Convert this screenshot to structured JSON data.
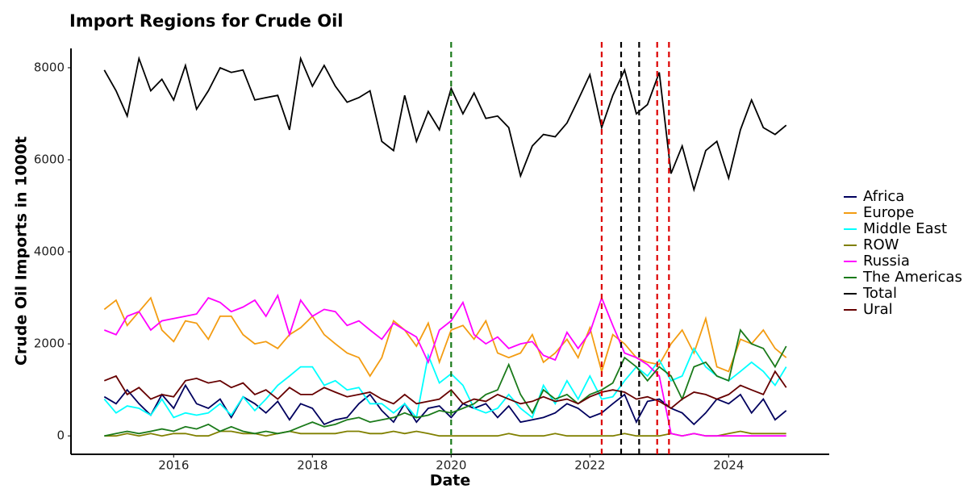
{
  "chart_data": {
    "type": "line",
    "title": "Import Regions for Crude Oil",
    "x_label": "Date",
    "y_label": "Crude Oil Imports in 1000t",
    "x": [
      2015,
      2015.17,
      2015.33,
      2015.5,
      2015.67,
      2015.83,
      2016,
      2016.17,
      2016.33,
      2016.5,
      2016.67,
      2016.83,
      2017,
      2017.17,
      2017.33,
      2017.5,
      2017.67,
      2017.83,
      2018,
      2018.17,
      2018.33,
      2018.5,
      2018.67,
      2018.83,
      2019,
      2019.17,
      2019.33,
      2019.5,
      2019.67,
      2019.83,
      2020,
      2020.17,
      2020.33,
      2020.5,
      2020.67,
      2020.83,
      2021,
      2021.17,
      2021.33,
      2021.5,
      2021.67,
      2021.83,
      2022,
      2022.17,
      2022.33,
      2022.5,
      2022.67,
      2022.83,
      2023,
      2023.17,
      2023.33,
      2023.5,
      2023.67,
      2023.83,
      2024,
      2024.17,
      2024.33,
      2024.5,
      2024.67,
      2024.83
    ],
    "series": [
      {
        "name": "Africa",
        "color": "#00005e",
        "values": [
          850,
          700,
          1000,
          700,
          450,
          900,
          600,
          1100,
          700,
          600,
          800,
          400,
          850,
          700,
          500,
          750,
          350,
          700,
          600,
          250,
          350,
          400,
          700,
          900,
          550,
          300,
          700,
          300,
          600,
          650,
          400,
          700,
          600,
          700,
          400,
          650,
          300,
          350,
          400,
          500,
          700,
          600,
          400,
          500,
          700,
          900,
          300,
          750,
          800,
          600,
          500,
          250,
          500,
          800,
          700,
          900,
          500,
          800,
          350,
          550
        ]
      },
      {
        "name": "Europe",
        "color": "#f39c12",
        "values": [
          2750,
          2950,
          2400,
          2700,
          3000,
          2300,
          2050,
          2500,
          2450,
          2100,
          2600,
          2600,
          2200,
          2000,
          2050,
          1900,
          2200,
          2350,
          2600,
          2200,
          2000,
          1800,
          1700,
          1300,
          1700,
          2500,
          2300,
          1950,
          2450,
          1600,
          2300,
          2400,
          2100,
          2500,
          1800,
          1700,
          1800,
          2200,
          1600,
          1800,
          2100,
          1700,
          2350,
          1400,
          2200,
          2000,
          1700,
          1600,
          1550,
          2000,
          2300,
          1800,
          2550,
          1500,
          1400,
          2100,
          2000,
          2300,
          1900,
          1700
        ]
      },
      {
        "name": "Middle East",
        "color": "#00ffff",
        "values": [
          800,
          500,
          650,
          600,
          450,
          800,
          400,
          500,
          450,
          500,
          700,
          450,
          850,
          550,
          800,
          1100,
          1300,
          1500,
          1500,
          1100,
          1200,
          1000,
          1050,
          700,
          700,
          500,
          700,
          400,
          1750,
          1150,
          1350,
          1100,
          600,
          500,
          600,
          900,
          600,
          400,
          1100,
          700,
          1200,
          800,
          1300,
          800,
          850,
          1200,
          1500,
          1300,
          1650,
          1200,
          1300,
          1900,
          1500,
          1300,
          1200,
          1400,
          1600,
          1400,
          1100,
          1500
        ]
      },
      {
        "name": "ROW",
        "color": "#808000",
        "values": [
          0,
          0,
          50,
          0,
          50,
          0,
          50,
          50,
          0,
          0,
          100,
          100,
          50,
          50,
          0,
          50,
          100,
          50,
          50,
          50,
          50,
          100,
          100,
          50,
          50,
          100,
          50,
          100,
          50,
          0,
          0,
          0,
          0,
          0,
          0,
          50,
          0,
          0,
          0,
          50,
          0,
          0,
          0,
          0,
          0,
          50,
          0,
          0,
          0,
          50,
          0,
          50,
          0,
          0,
          50,
          100,
          50,
          50,
          50,
          50
        ]
      },
      {
        "name": "Russia",
        "color": "#ff00ff",
        "values": [
          2300,
          2200,
          2600,
          2700,
          2300,
          2500,
          2550,
          2600,
          2650,
          3000,
          2900,
          2700,
          2800,
          2950,
          2600,
          3050,
          2200,
          2950,
          2600,
          2750,
          2700,
          2400,
          2500,
          2300,
          2100,
          2450,
          2300,
          2150,
          1600,
          2300,
          2500,
          2900,
          2200,
          2000,
          2150,
          1900,
          2000,
          2050,
          1750,
          1650,
          2250,
          1900,
          2250,
          3000,
          2400,
          1800,
          1700,
          1550,
          1300,
          50,
          0,
          50,
          0,
          0,
          0,
          0,
          0,
          0,
          0,
          0
        ]
      },
      {
        "name": "The Americas",
        "color": "#1a7a1a",
        "values": [
          0,
          50,
          100,
          50,
          100,
          150,
          100,
          200,
          150,
          250,
          100,
          200,
          100,
          50,
          100,
          50,
          100,
          200,
          300,
          200,
          250,
          350,
          400,
          300,
          350,
          400,
          500,
          400,
          450,
          550,
          500,
          600,
          700,
          900,
          1000,
          1550,
          900,
          500,
          1000,
          800,
          900,
          700,
          900,
          1000,
          1150,
          1700,
          1500,
          1200,
          1500,
          1300,
          800,
          1500,
          1600,
          1300,
          1200,
          2300,
          2000,
          1900,
          1500,
          1950
        ]
      },
      {
        "name": "Total",
        "color": "#000000",
        "values": [
          7950,
          7500,
          6950,
          8200,
          7500,
          7750,
          7300,
          8050,
          7100,
          7500,
          8000,
          7900,
          7950,
          7300,
          7350,
          7400,
          6650,
          8200,
          7600,
          8050,
          7600,
          7250,
          7350,
          7500,
          6400,
          6200,
          7400,
          6400,
          7050,
          6650,
          7550,
          7000,
          7450,
          6900,
          6950,
          6700,
          5650,
          6300,
          6550,
          6500,
          6800,
          7300,
          7850,
          6700,
          7400,
          7950,
          7000,
          7200,
          7900,
          5700,
          6300,
          5350,
          6200,
          6400,
          5600,
          6650,
          7300,
          6700,
          6550,
          6750
        ]
      },
      {
        "name": "Ural",
        "color": "#660000",
        "values": [
          1200,
          1300,
          900,
          1050,
          800,
          900,
          850,
          1200,
          1250,
          1150,
          1200,
          1050,
          1150,
          900,
          1000,
          800,
          1050,
          900,
          900,
          1050,
          950,
          850,
          900,
          950,
          800,
          700,
          900,
          700,
          750,
          800,
          1000,
          700,
          800,
          750,
          900,
          800,
          700,
          750,
          850,
          750,
          800,
          700,
          850,
          950,
          1000,
          950,
          800,
          850,
          750,
          600,
          800,
          950,
          900,
          800,
          900,
          1100,
          1000,
          900,
          1400,
          1050
        ]
      }
    ],
    "vlines": [
      {
        "x": 2020,
        "color": "#1a7a1a"
      },
      {
        "x": 2022.17,
        "color": "#dd0000"
      },
      {
        "x": 2022.45,
        "color": "#000000"
      },
      {
        "x": 2022.71,
        "color": "#000000"
      },
      {
        "x": 2022.97,
        "color": "#dd0000"
      },
      {
        "x": 2023.14,
        "color": "#dd0000"
      }
    ],
    "xlim": [
      2014.52,
      2025.45
    ],
    "xticks": [
      2016,
      2018,
      2020,
      2022,
      2024
    ],
    "ylim": [
      -400,
      8420
    ],
    "yticks": [
      0,
      2000,
      4000,
      6000,
      8000
    ],
    "grid": false,
    "legend": "right"
  }
}
